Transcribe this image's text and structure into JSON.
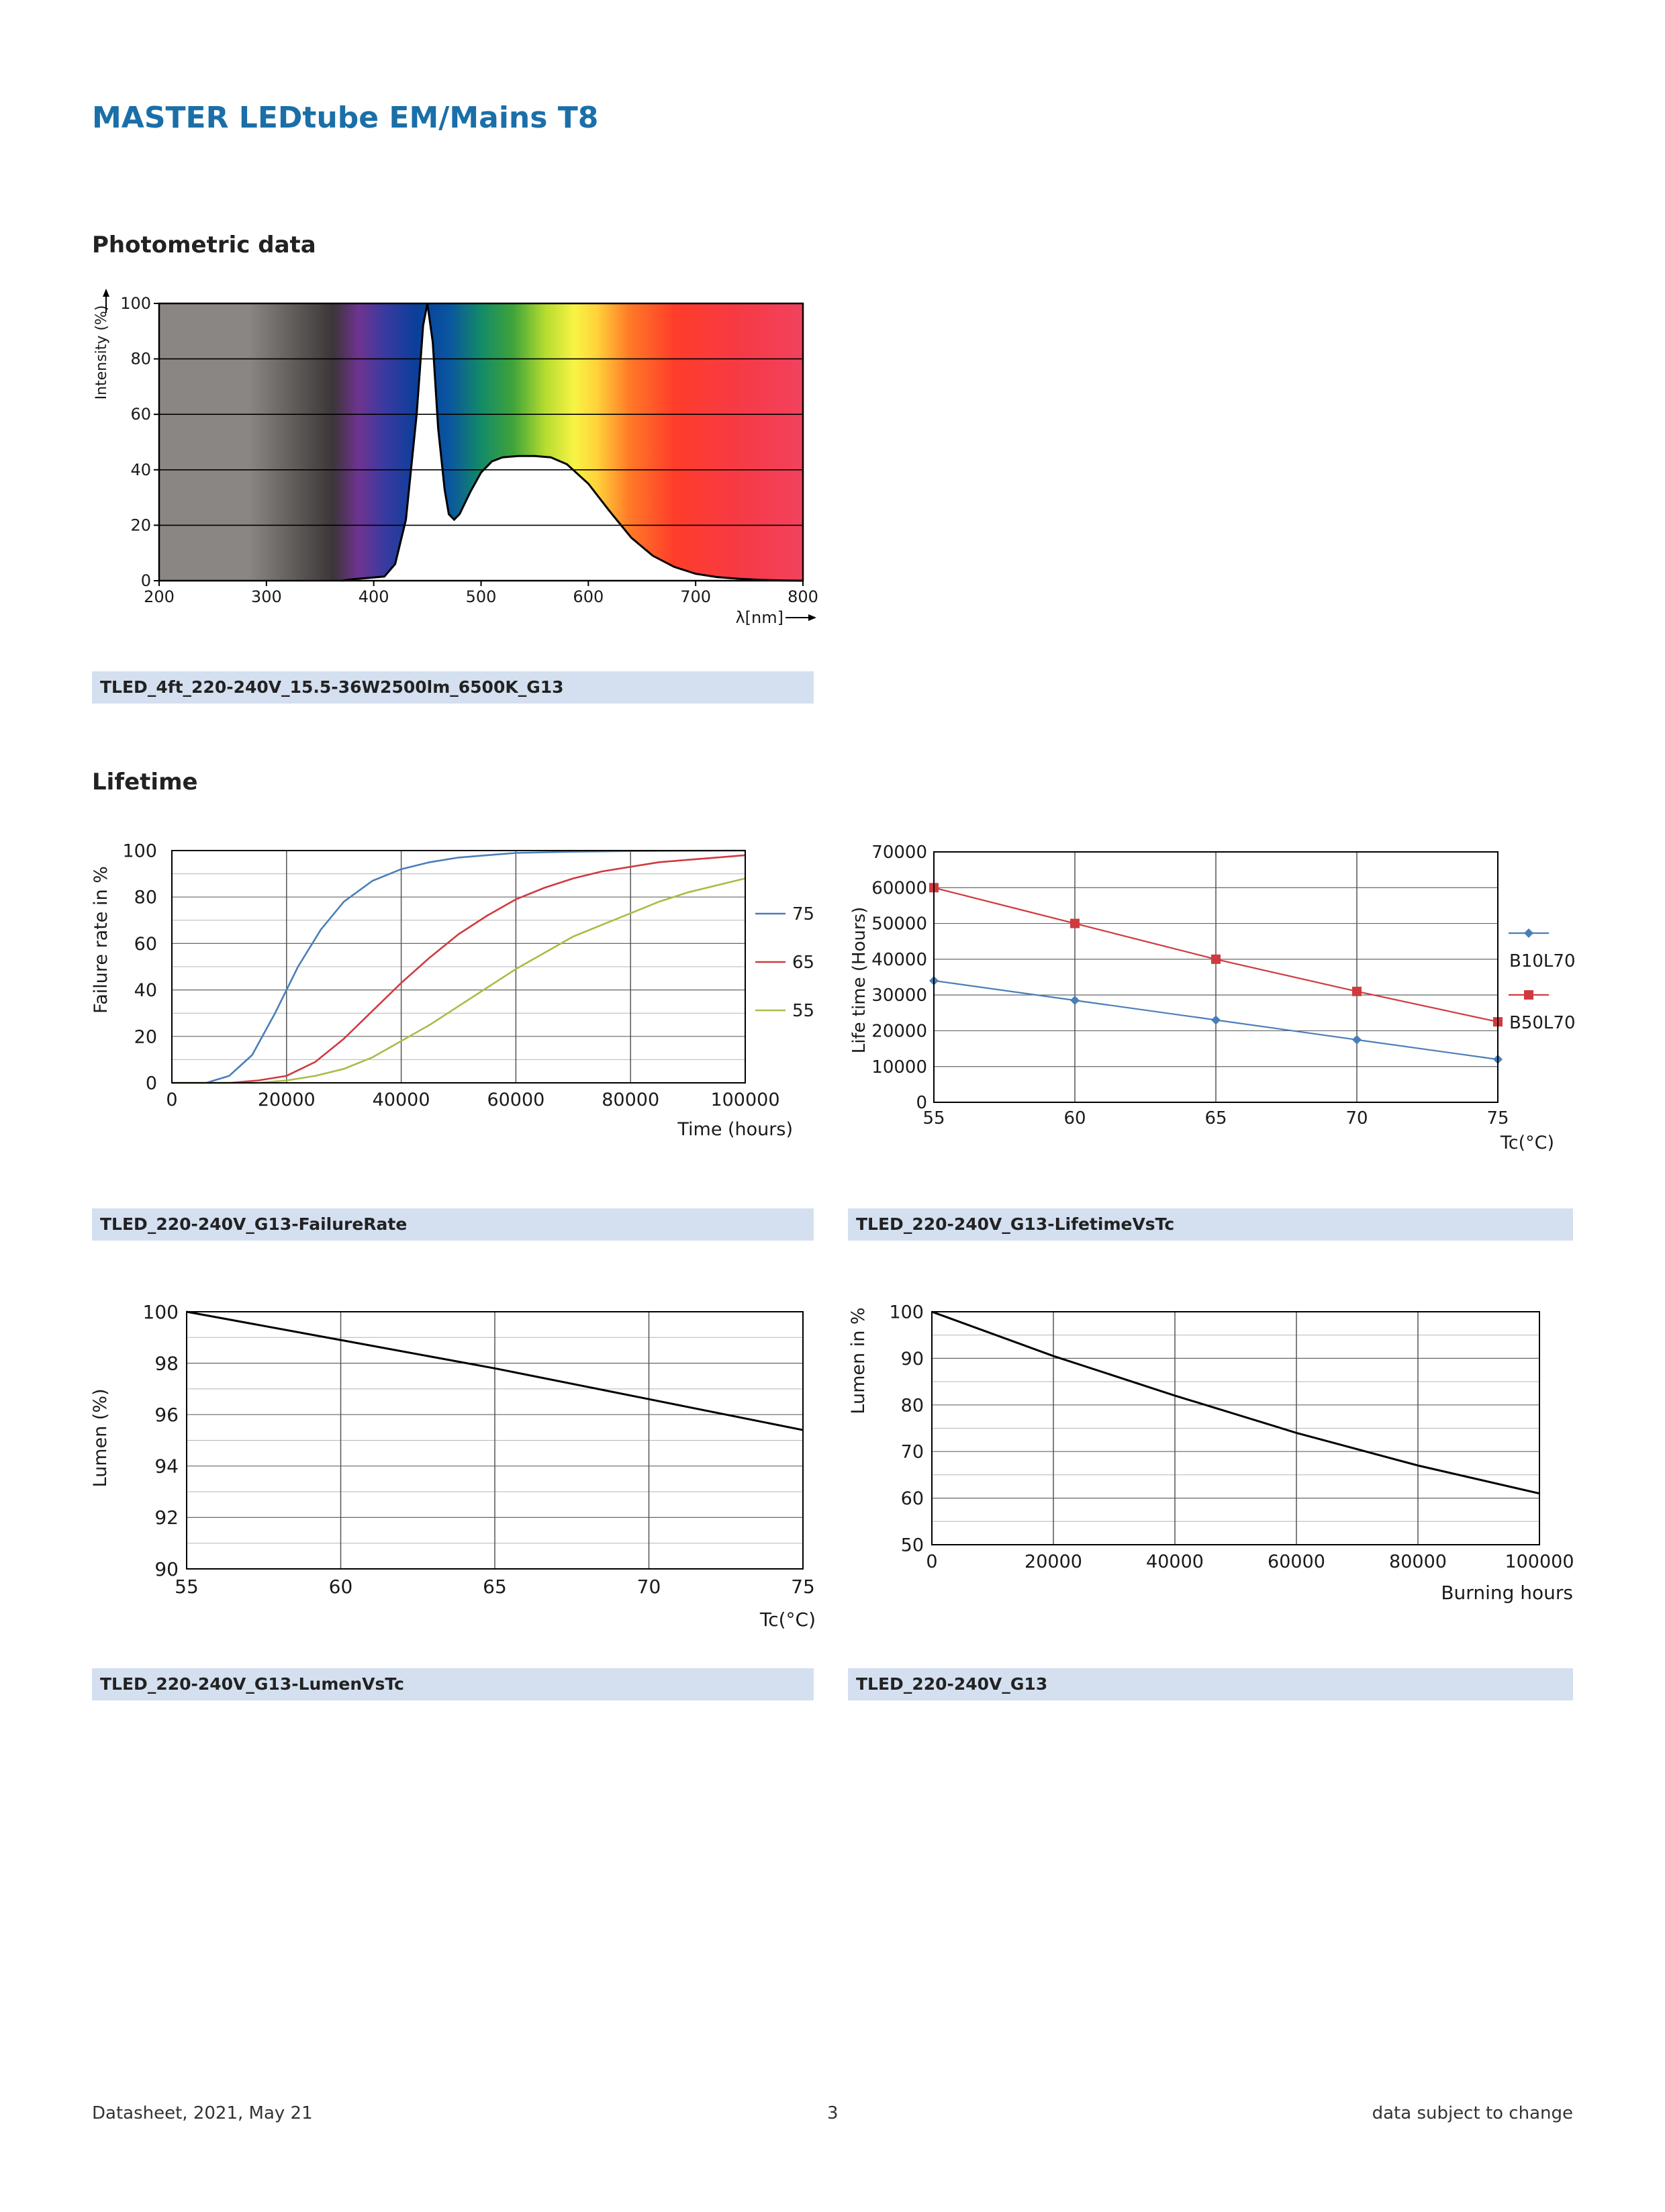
{
  "document": {
    "title": "MASTER LEDtube EM/Mains T8",
    "sections": {
      "photometric": "Photometric data",
      "lifetime": "Lifetime"
    },
    "footer": {
      "left": "Datasheet, 2021, May 21",
      "center": "3",
      "right": "data subject to change"
    }
  },
  "captions": {
    "spectrum": "TLED_4ft_220-240V_15.5-36W2500lm_6500K_G13",
    "failure": "TLED_220-240V_G13-FailureRate",
    "lifetime_tc": "TLED_220-240V_G13-LifetimeVsTc",
    "lumen_tc": "TLED_220-240V_G13-LumenVsTc",
    "lumen_hours": "TLED_220-240V_G13"
  },
  "colors": {
    "blue": "#4a7eb8",
    "red": "#d03a3f",
    "olive": "#a9bc45",
    "caption_bg": "#d4e0f0",
    "title": "#1a6fa8"
  },
  "chart_data": [
    {
      "id": "spectrum",
      "type": "area",
      "ylabel": "Intensity (%)",
      "xlabel": "λ[nm]",
      "xlim": [
        200,
        800
      ],
      "ylim": [
        0,
        100
      ],
      "xticks": [
        200,
        300,
        400,
        500,
        600,
        700,
        800
      ],
      "yticks": [
        0,
        20,
        40,
        60,
        80,
        100
      ],
      "grid": true,
      "background": "visible-spectrum",
      "series": [
        {
          "x": [
            370,
            380,
            395,
            410,
            420,
            430,
            440,
            446,
            450,
            455,
            460,
            466,
            470,
            475,
            480,
            490,
            500,
            510,
            520,
            535,
            550,
            565,
            580,
            600,
            620,
            640,
            660,
            680,
            700,
            720,
            740,
            760,
            780,
            800
          ],
          "values": [
            0,
            0.5,
            1,
            1.5,
            6,
            22,
            60,
            92,
            100,
            86,
            55,
            33,
            24,
            22,
            24,
            32,
            39,
            43,
            44.5,
            45,
            45,
            44.5,
            42,
            35,
            25,
            15.5,
            9,
            5,
            2.5,
            1.3,
            0.7,
            0.3,
            0.1,
            0
          ]
        }
      ]
    },
    {
      "id": "failure",
      "type": "line",
      "ylabel": "Failure rate in %",
      "xlabel": "Time (hours)",
      "xlim": [
        0,
        100000
      ],
      "ylim": [
        0,
        100
      ],
      "xticks": [
        0,
        20000,
        40000,
        60000,
        80000,
        100000
      ],
      "yticks": [
        0,
        20,
        40,
        60,
        80,
        100
      ],
      "grid": true,
      "legend": "right",
      "series": [
        {
          "name": "75",
          "color": "#4a7eb8",
          "x": [
            0,
            6000,
            10000,
            14000,
            18000,
            22000,
            26000,
            30000,
            35000,
            40000,
            45000,
            50000,
            55000,
            60000,
            70000,
            80000,
            90000,
            100000
          ],
          "values": [
            0,
            0,
            3,
            12,
            30,
            50,
            66,
            78,
            87,
            92,
            95,
            97,
            98,
            99,
            99.5,
            99.8,
            99.9,
            100
          ]
        },
        {
          "name": "65",
          "color": "#d03a3f",
          "x": [
            0,
            10000,
            15000,
            20000,
            25000,
            30000,
            35000,
            40000,
            45000,
            50000,
            55000,
            60000,
            65000,
            70000,
            75000,
            80000,
            85000,
            90000,
            95000,
            100000
          ],
          "values": [
            0,
            0,
            1,
            3,
            9,
            19,
            31,
            43,
            54,
            64,
            72,
            79,
            84,
            88,
            91,
            93,
            95,
            96,
            97,
            98
          ]
        },
        {
          "name": "55",
          "color": "#a9bc45",
          "x": [
            0,
            15000,
            20000,
            25000,
            30000,
            35000,
            40000,
            45000,
            50000,
            55000,
            60000,
            65000,
            70000,
            75000,
            80000,
            85000,
            90000,
            95000,
            100000
          ],
          "values": [
            0,
            0,
            1,
            3,
            6,
            11,
            18,
            25,
            33,
            41,
            49,
            56,
            63,
            68,
            73,
            78,
            82,
            85,
            88
          ]
        }
      ]
    },
    {
      "id": "lifetime_tc",
      "type": "line",
      "ylabel": "Life time (Hours)",
      "xlabel": "Tc(°C)",
      "xlim": [
        55,
        75
      ],
      "ylim": [
        0,
        70000
      ],
      "xticks": [
        55,
        60,
        65,
        70,
        75
      ],
      "yticks": [
        0,
        10000,
        20000,
        30000,
        40000,
        50000,
        60000,
        70000
      ],
      "grid": true,
      "legend": "right",
      "series": [
        {
          "name": "B10L70",
          "color": "#4a7eb8",
          "marker": "diamond",
          "x": [
            55,
            60,
            65,
            70,
            75
          ],
          "values": [
            34000,
            28500,
            23000,
            17500,
            12000
          ]
        },
        {
          "name": "B50L70",
          "color": "#d03a3f",
          "marker": "square",
          "x": [
            55,
            60,
            65,
            70,
            75
          ],
          "values": [
            60000,
            50000,
            40000,
            31000,
            22500
          ]
        }
      ]
    },
    {
      "id": "lumen_tc",
      "type": "line",
      "ylabel": "Lumen (%)",
      "xlabel": "Tc(°C)",
      "xlim": [
        55,
        75
      ],
      "ylim": [
        90,
        100
      ],
      "xticks": [
        55,
        60,
        65,
        70,
        75
      ],
      "yticks": [
        90,
        92,
        94,
        96,
        98,
        100
      ],
      "grid": true,
      "series": [
        {
          "color": "#000000",
          "x": [
            55,
            60,
            65,
            70,
            75
          ],
          "values": [
            100,
            98.9,
            97.8,
            96.6,
            95.4
          ]
        }
      ]
    },
    {
      "id": "lumen_hours",
      "type": "line",
      "ylabel": "Lumen in %",
      "xlabel": "Burning hours",
      "xlim": [
        0,
        100000
      ],
      "ylim": [
        50,
        100
      ],
      "xticks": [
        0,
        20000,
        40000,
        60000,
        80000,
        100000
      ],
      "yticks": [
        50,
        60,
        70,
        80,
        90,
        100
      ],
      "grid": true,
      "series": [
        {
          "color": "#000000",
          "x": [
            0,
            20000,
            40000,
            60000,
            80000,
            100000
          ],
          "values": [
            100,
            90.5,
            82,
            74,
            67,
            61
          ]
        }
      ]
    }
  ]
}
